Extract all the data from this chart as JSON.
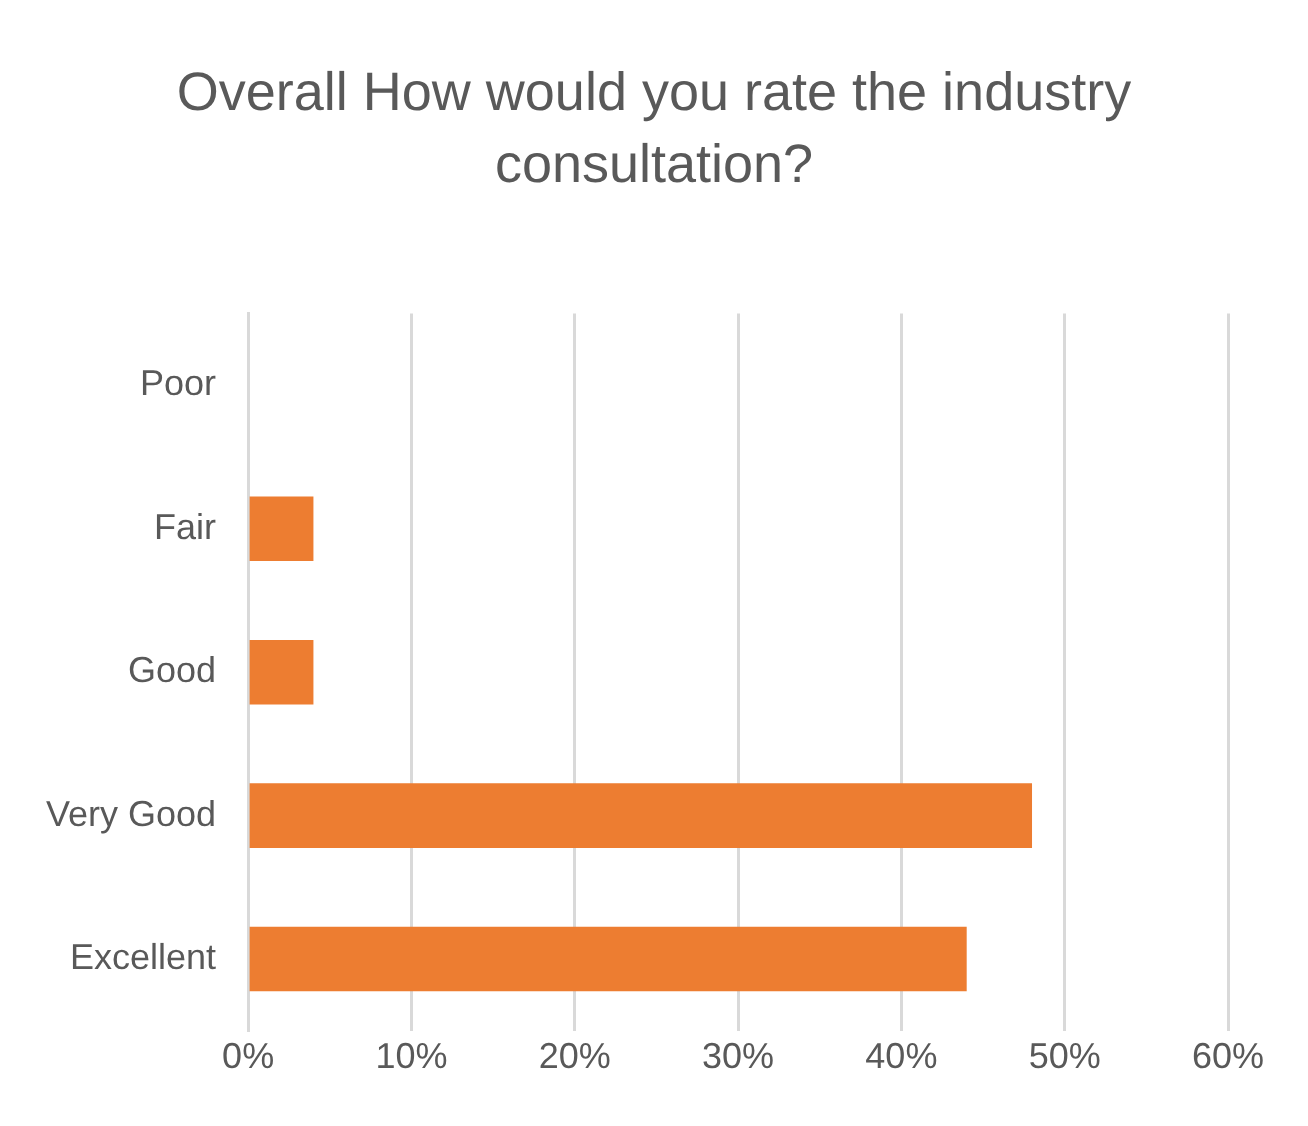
{
  "chart_data": {
    "type": "bar",
    "orientation": "horizontal",
    "title": "Overall How would you rate the industry consultation?",
    "categories": [
      "Poor",
      "Fair",
      "Good",
      "Very Good",
      "Excellent"
    ],
    "values": [
      0,
      4,
      4,
      48,
      44
    ],
    "color": "#ed7d31",
    "xlim": [
      0,
      60
    ],
    "xticks": [
      {
        "value": 0,
        "label": "0%"
      },
      {
        "value": 10,
        "label": "10%"
      },
      {
        "value": 20,
        "label": "20%"
      },
      {
        "value": 30,
        "label": "30%"
      },
      {
        "value": 40,
        "label": "40%"
      },
      {
        "value": 50,
        "label": "50%"
      },
      {
        "value": 60,
        "label": "60%"
      }
    ],
    "grid": "x",
    "legend": false
  }
}
